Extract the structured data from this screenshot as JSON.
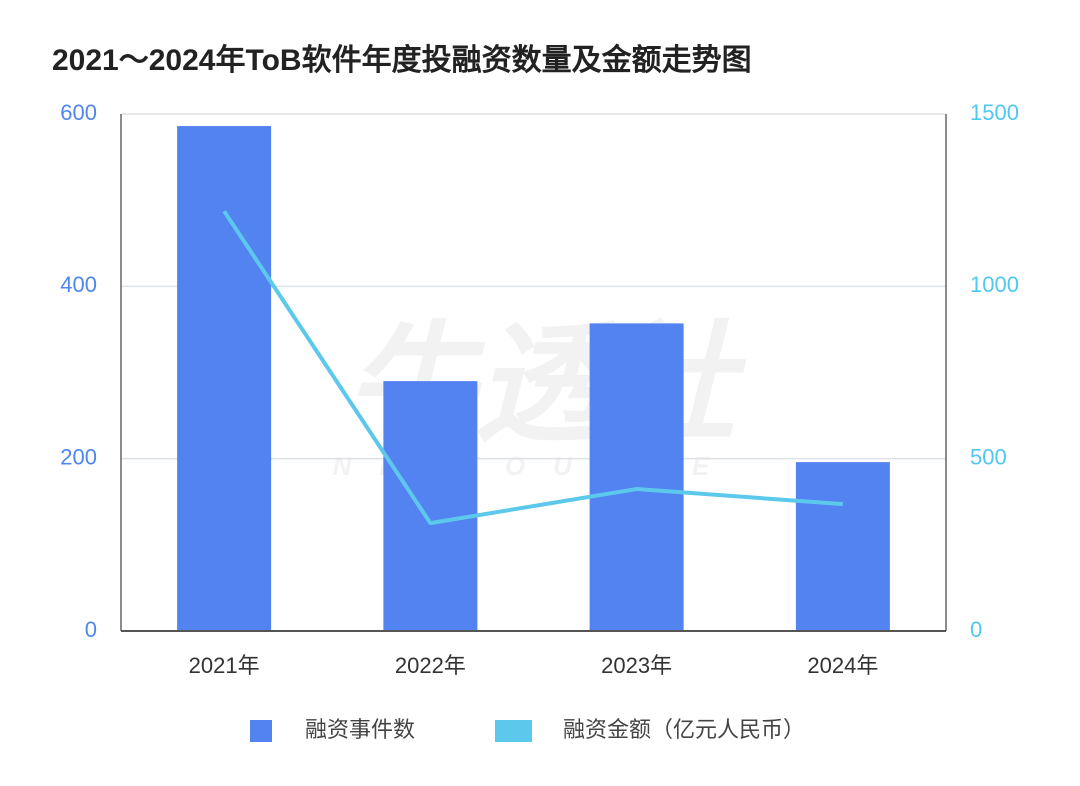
{
  "chart_data": {
    "type": "bar_line",
    "title": "2021～2024年ToB软件年度投融资数量及金额走势图",
    "watermark": "牛透社",
    "watermark_sub": "NIUTOUSHE",
    "categories": [
      "2021年",
      "2022年",
      "2023年",
      "2024年"
    ],
    "series": [
      {
        "name": "融资事件数",
        "type": "bar",
        "color": "#5383f1",
        "values": [
          586,
          290,
          357,
          196
        ]
      },
      {
        "name": "融资金额（亿元人民币）",
        "type": "line",
        "color": "#5bc8ec",
        "axis": "y2",
        "values": [
          1218,
          313,
          412,
          368
        ]
      }
    ],
    "ylim": [
      0,
      600
    ],
    "yticks": [
      0,
      200,
      400,
      600
    ],
    "y2lim": [
      0,
      1500
    ],
    "y2ticks": [
      0,
      500,
      1000,
      1500
    ],
    "ytick_color": "#4f86f0",
    "y2tick_color": "#4fc8f0",
    "grid": true,
    "legend": "bottom"
  }
}
